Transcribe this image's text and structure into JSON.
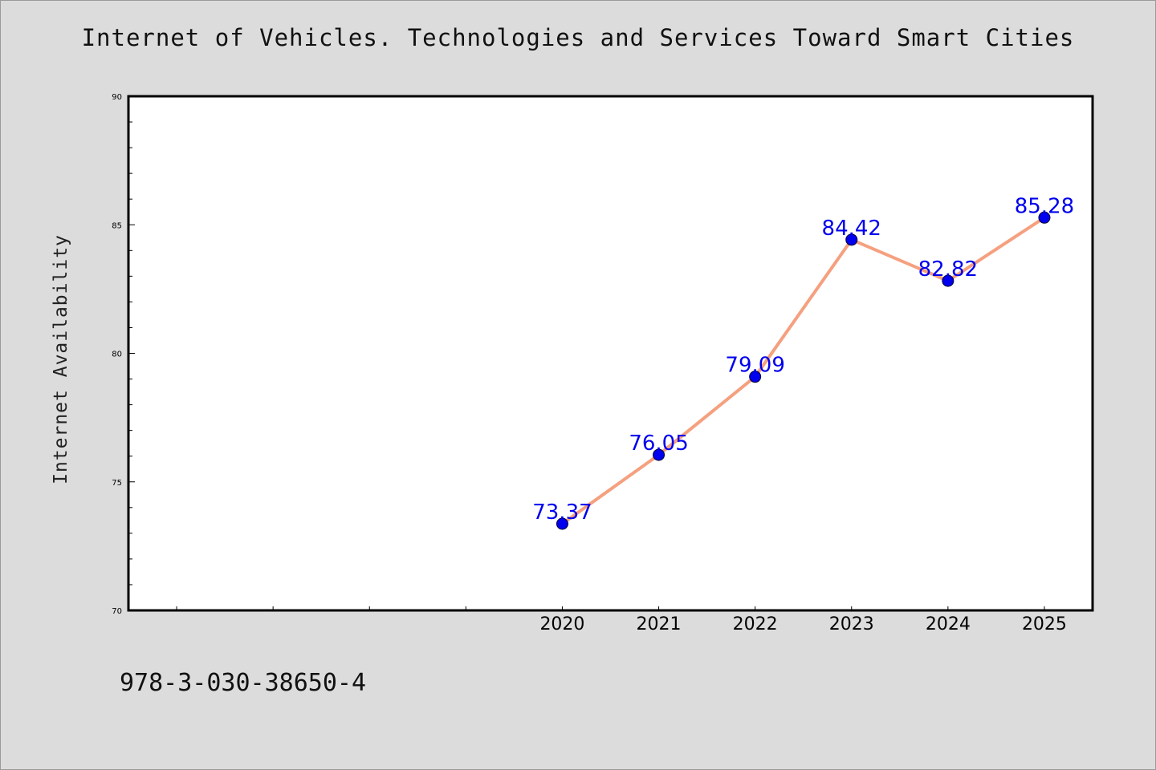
{
  "header": {
    "title": "Internet of Vehicles. Technologies and Services Toward Smart Cities"
  },
  "footer": {
    "isbn": "978-3-030-38650-4"
  },
  "chart_data": {
    "type": "line",
    "title": "Internet of Vehicles. Technologies and Services Toward Smart Cities",
    "xlabel": "",
    "ylabel": "Internet Availability",
    "x": [
      "2020",
      "2021",
      "2022",
      "2023",
      "2024",
      "2025"
    ],
    "series": [
      {
        "values": [
          73.37,
          76.05,
          79.09,
          84.42,
          82.82,
          85.28
        ],
        "line_color": "#f5a07f",
        "marker_color": "#0000ee"
      }
    ],
    "data_labels": [
      "73.37",
      "76.05",
      "79.09",
      "84.42",
      "82.82",
      "85.28"
    ],
    "label_color": "#0000ee",
    "ylim": [
      70,
      90
    ],
    "yticks": [
      70,
      75,
      80,
      85,
      90
    ],
    "x_slots": 10,
    "x_first_slot": 4,
    "grid": false,
    "legend": "none"
  }
}
